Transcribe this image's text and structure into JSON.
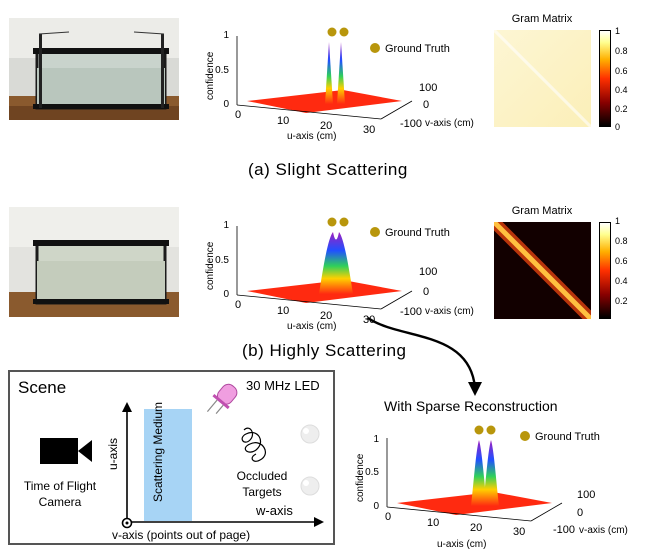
{
  "panel_a": {
    "caption": "(a) Slight Scattering",
    "plot": {
      "z_label": "confidence",
      "u_label": "u-axis (cm)",
      "v_label": "v-axis (cm)",
      "z_ticks": [
        "0",
        "0.5",
        "1"
      ],
      "u_ticks": [
        "0",
        "10",
        "20",
        "30"
      ],
      "v_ticks": [
        "100",
        "0",
        "-100"
      ],
      "legend": "Ground Truth"
    },
    "gram": {
      "title": "Gram Matrix",
      "ticks": [
        "1",
        "0.8",
        "0.6",
        "0.4",
        "0.2",
        "0"
      ]
    }
  },
  "panel_b": {
    "caption": "(b) Highly Scattering",
    "plot": {
      "z_label": "confidence",
      "u_label": "u-axis (cm)",
      "v_label": "v-axis (cm)",
      "z_ticks": [
        "0",
        "0.5",
        "1"
      ],
      "u_ticks": [
        "0",
        "10",
        "20",
        "30"
      ],
      "v_ticks": [
        "100",
        "0",
        "-100"
      ],
      "legend": "Ground Truth"
    },
    "gram": {
      "title": "Gram Matrix",
      "ticks": [
        "1",
        "0.8",
        "0.6",
        "0.4",
        "0.2"
      ]
    }
  },
  "reconstruction": {
    "title": "With Sparse Reconstruction",
    "plot": {
      "z_label": "confidence",
      "u_label": "u-axis (cm)",
      "v_label": "v-axis (cm)",
      "z_ticks": [
        "0",
        "0.5",
        "1"
      ],
      "u_ticks": [
        "0",
        "10",
        "20",
        "30"
      ],
      "v_ticks": [
        "100",
        "0",
        "-100"
      ],
      "legend": "Ground Truth"
    }
  },
  "scene": {
    "title": "Scene",
    "led_label": "30 MHz LED",
    "medium_label": "Scattering Medium",
    "targets_label": "Occluded Targets",
    "camera_label": "Time of Flight Camera",
    "u_axis": "u-axis",
    "w_axis": "w-axis",
    "v_axis": "v-axis (points out of page)"
  },
  "colors": {
    "floor": "#ff2a10",
    "ground_truth": "#b8960c",
    "box_border": "#555555"
  }
}
